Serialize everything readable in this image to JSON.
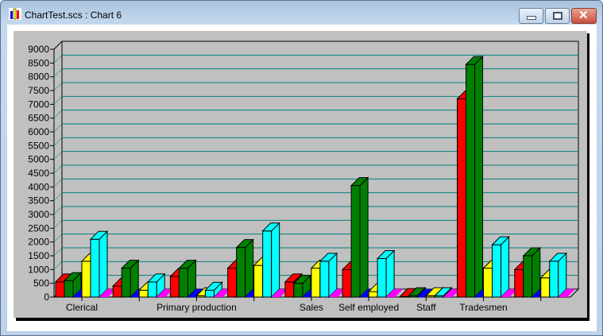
{
  "window": {
    "title": "ChartTest.scs : Chart 6",
    "icon": "bar-chart-icon"
  },
  "controls": {
    "minimize": "minimize-icon",
    "maximize": "maximize-icon",
    "close": "close-icon"
  },
  "colors": {
    "panel": "#c0c0c0",
    "grid": "#008080",
    "series": [
      "#ff0000",
      "#008000",
      "#0000ff",
      "#ffff00",
      "#00ffff",
      "#ff00ff"
    ]
  },
  "chart_data": {
    "type": "bar",
    "style": "3d-clustered",
    "title": "",
    "xlabel": "",
    "ylabel": "",
    "ylim": [
      0,
      9000
    ],
    "yticks": [
      "0",
      "500",
      "1000",
      "1500",
      "2000",
      "2500",
      "3000",
      "3500",
      "4000",
      "4500",
      "5000",
      "5500",
      "6000",
      "6500",
      "7000",
      "7500",
      "8000",
      "8500",
      "9000"
    ],
    "grid": true,
    "legend": "none",
    "categories": [
      "Clerical",
      "",
      "Primary production",
      "",
      "Sales",
      "Self employed",
      "Staff",
      "Tradesmen",
      ""
    ],
    "series": [
      {
        "values": [
          550,
          400,
          750,
          1050,
          550,
          1000,
          20,
          7200,
          1000
        ]
      },
      {
        "values": [
          600,
          1050,
          1050,
          1800,
          500,
          4050,
          50,
          8450,
          1500
        ]
      },
      {
        "values": [
          0,
          0,
          0,
          0,
          0,
          0,
          0,
          0,
          0
        ]
      },
      {
        "values": [
          1300,
          250,
          50,
          1150,
          1050,
          200,
          50,
          1050,
          700
        ]
      },
      {
        "values": [
          2100,
          550,
          250,
          2400,
          1300,
          1400,
          50,
          1900,
          1300
        ]
      },
      {
        "values": [
          0,
          0,
          0,
          0,
          0,
          0,
          0,
          0,
          0
        ]
      }
    ]
  }
}
